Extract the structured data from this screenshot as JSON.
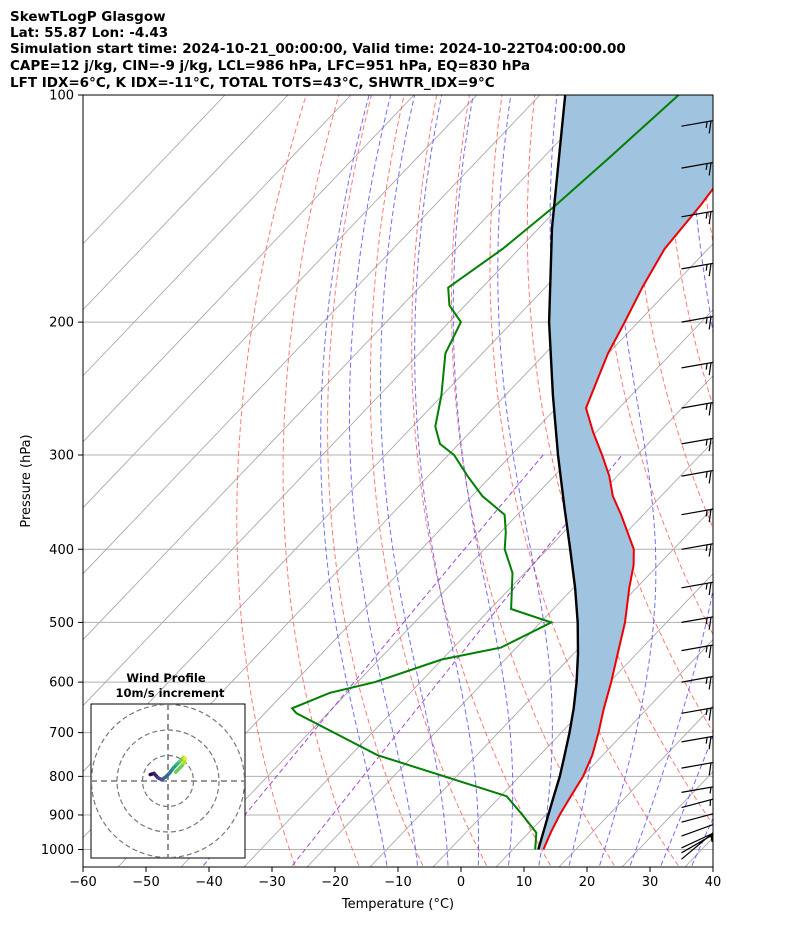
{
  "header": {
    "lines": [
      "SkewTLogP Glasgow",
      "Lat: 55.87   Lon: -4.43",
      "Simulation start time: 2024-10-21_00:00:00, Valid time: 2024-10-22T04:00:00.00",
      "CAPE=12 j/kg, CIN=-9 j/kg, LCL=986 hPa, LFC=951 hPa, EQ=830 hPa",
      "LFT IDX=6°C, K IDX=-11°C, TOTAL TOTS=43°C, SHWTR_IDX=9°C"
    ]
  },
  "chart_data": {
    "type": "line",
    "title": "SkewTLogP Glasgow",
    "xlabel": "Temperature (°C)",
    "ylabel": "Pressure (hPa)",
    "xlim": [
      -60,
      40
    ],
    "ylim": [
      1050,
      100
    ],
    "y_scale": "log",
    "skew": "skew-T, 45 degrees",
    "x_ticks": [
      -60,
      -50,
      -40,
      -30,
      -20,
      -10,
      0,
      10,
      20,
      30,
      40
    ],
    "x_tick_labels": [
      "−60",
      "−50",
      "−40",
      "−30",
      "−20",
      "−10",
      "0",
      "10",
      "20",
      "30",
      "40"
    ],
    "y_ticks": [
      1000,
      900,
      800,
      700,
      600,
      500,
      400,
      300,
      200,
      100
    ],
    "y_tick_labels": [
      "1000",
      "900",
      "800",
      "700",
      "600",
      "500",
      "400",
      "300",
      "200",
      "100"
    ],
    "grid": true,
    "colors": {
      "temperature": "#ee0000",
      "dewpoint": "#008000",
      "parcel": "#000000",
      "cape_fill": "#a0c4e0",
      "dry_adiabats": "#ff6060",
      "moist_adiabats": "#5555ff",
      "mixing_ratio": "#9933cc",
      "isotherms": "#aaaaaa"
    },
    "series": [
      {
        "key": "temperature",
        "p": [
          1000,
          950,
          900,
          850,
          800,
          750,
          700,
          650,
          600,
          550,
          500,
          450,
          420,
          400,
          360,
          340,
          320,
          300,
          280,
          260,
          240,
          220,
          200,
          180,
          160,
          140,
          120,
          110,
          100
        ],
        "t": [
          10.3,
          8.8,
          7.4,
          6.2,
          5.0,
          3.1,
          0.5,
          -2.5,
          -5.5,
          -9.0,
          -12.8,
          -17.6,
          -20.5,
          -23.0,
          -30.5,
          -34.8,
          -38.5,
          -43.0,
          -48.0,
          -53.0,
          -55.5,
          -58.2,
          -60.5,
          -63.2,
          -65.8,
          -67.0,
          -69.0,
          -70.0,
          -71.0
        ]
      },
      {
        "key": "dewpoint",
        "p": [
          1000,
          950,
          900,
          850,
          800,
          750,
          700,
          660,
          650,
          620,
          600,
          560,
          540,
          500,
          480,
          430,
          400,
          380,
          360,
          340,
          320,
          300,
          290,
          275,
          250,
          220,
          200,
          190,
          180,
          160,
          140,
          120,
          100
        ],
        "td": [
          9.0,
          6.5,
          1.5,
          -4.0,
          -17.0,
          -31.0,
          -41.5,
          -50.5,
          -52.0,
          -48.5,
          -43.0,
          -36.0,
          -28.5,
          -24.5,
          -33.0,
          -38.5,
          -43.5,
          -46.0,
          -49.0,
          -55.5,
          -61.0,
          -66.5,
          -70.5,
          -74.0,
          -78.0,
          -84.0,
          -86.5,
          -91.0,
          -94.0,
          -91.5,
          -90.0,
          -89.0,
          -88.0
        ]
      },
      {
        "key": "parcel",
        "p": [
          1000,
          950,
          900,
          850,
          800,
          750,
          700,
          650,
          600,
          550,
          500,
          450,
          400,
          350,
          300,
          250,
          200,
          150,
          100
        ],
        "t": [
          9.5,
          7.6,
          5.6,
          3.5,
          1.3,
          -1.3,
          -4.1,
          -7.3,
          -11.0,
          -15.3,
          -20.3,
          -26.2,
          -33.1,
          -41.0,
          -50.0,
          -60.3,
          -72.5,
          -87.0,
          -106.0
        ]
      }
    ],
    "wind_barbs": {
      "x": 35,
      "p": [
        1030,
        1010,
        995,
        960,
        920,
        880,
        840,
        780,
        720,
        660,
        600,
        545,
        500,
        450,
        400,
        360,
        320,
        290,
        260,
        230,
        200,
        170,
        145,
        125,
        110
      ],
      "speed_kt": [
        15,
        25,
        25,
        30,
        30,
        35,
        35,
        40,
        45,
        45,
        45,
        45,
        45,
        45,
        45,
        45,
        45,
        45,
        45,
        45,
        45,
        45,
        45,
        45,
        45
      ],
      "direction_deg": [
        230,
        240,
        245,
        250,
        255,
        255,
        260,
        260,
        260,
        260,
        260,
        260,
        260,
        260,
        260,
        260,
        260,
        260,
        260,
        260,
        260,
        260,
        260,
        260,
        260
      ]
    },
    "inset": {
      "title": "Wind Profile",
      "subtitle": "10m/s increment",
      "type": "hodograph",
      "u": [
        3,
        5.5,
        6.5,
        6.8,
        6.0,
        4.8,
        3.5,
        2.0,
        0.5,
        -1.0,
        -2.5,
        -4.0,
        -5.5,
        -7.0
      ],
      "v": [
        3.5,
        6.0,
        7.5,
        8.8,
        9.2,
        7.8,
        6.5,
        5.0,
        3.0,
        1.5,
        0.5,
        1.3,
        3.0,
        2.5
      ]
    }
  }
}
